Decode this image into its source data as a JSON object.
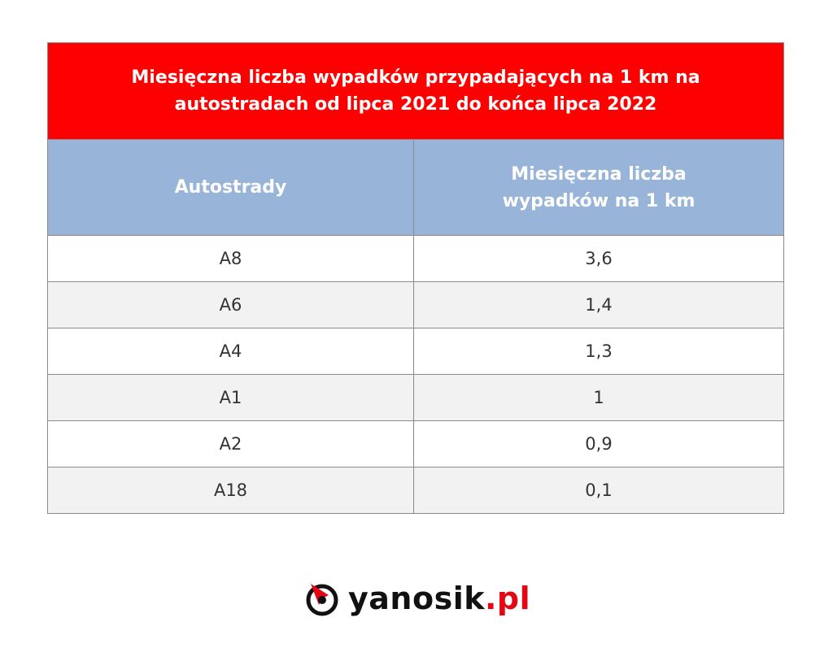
{
  "chart_data": {
    "type": "table",
    "title": "Miesięczna liczba wypadków przypadających na 1 km na autostradach od lipca 2021 do końca lipca 2022",
    "columns": [
      "Autostrady",
      "Miesięczna liczba wypadków na 1 km"
    ],
    "rows": [
      {
        "autostrada": "A8",
        "wartosc": "3,6"
      },
      {
        "autostrada": "A6",
        "wartosc": "1,4"
      },
      {
        "autostrada": "A4",
        "wartosc": "1,3"
      },
      {
        "autostrada": "A1",
        "wartosc": "1"
      },
      {
        "autostrada": "A2",
        "wartosc": "0,9"
      },
      {
        "autostrada": "A18",
        "wartosc": "0,1"
      }
    ]
  },
  "logo": {
    "name": "yanosik",
    "suffix": ".pl",
    "icon": "yanosik-arrow-icon"
  },
  "colors": {
    "title_bg": "#ff0000",
    "header_bg": "#98b4d8",
    "alt_row": "#f2f2f2",
    "accent": "#e30613"
  }
}
